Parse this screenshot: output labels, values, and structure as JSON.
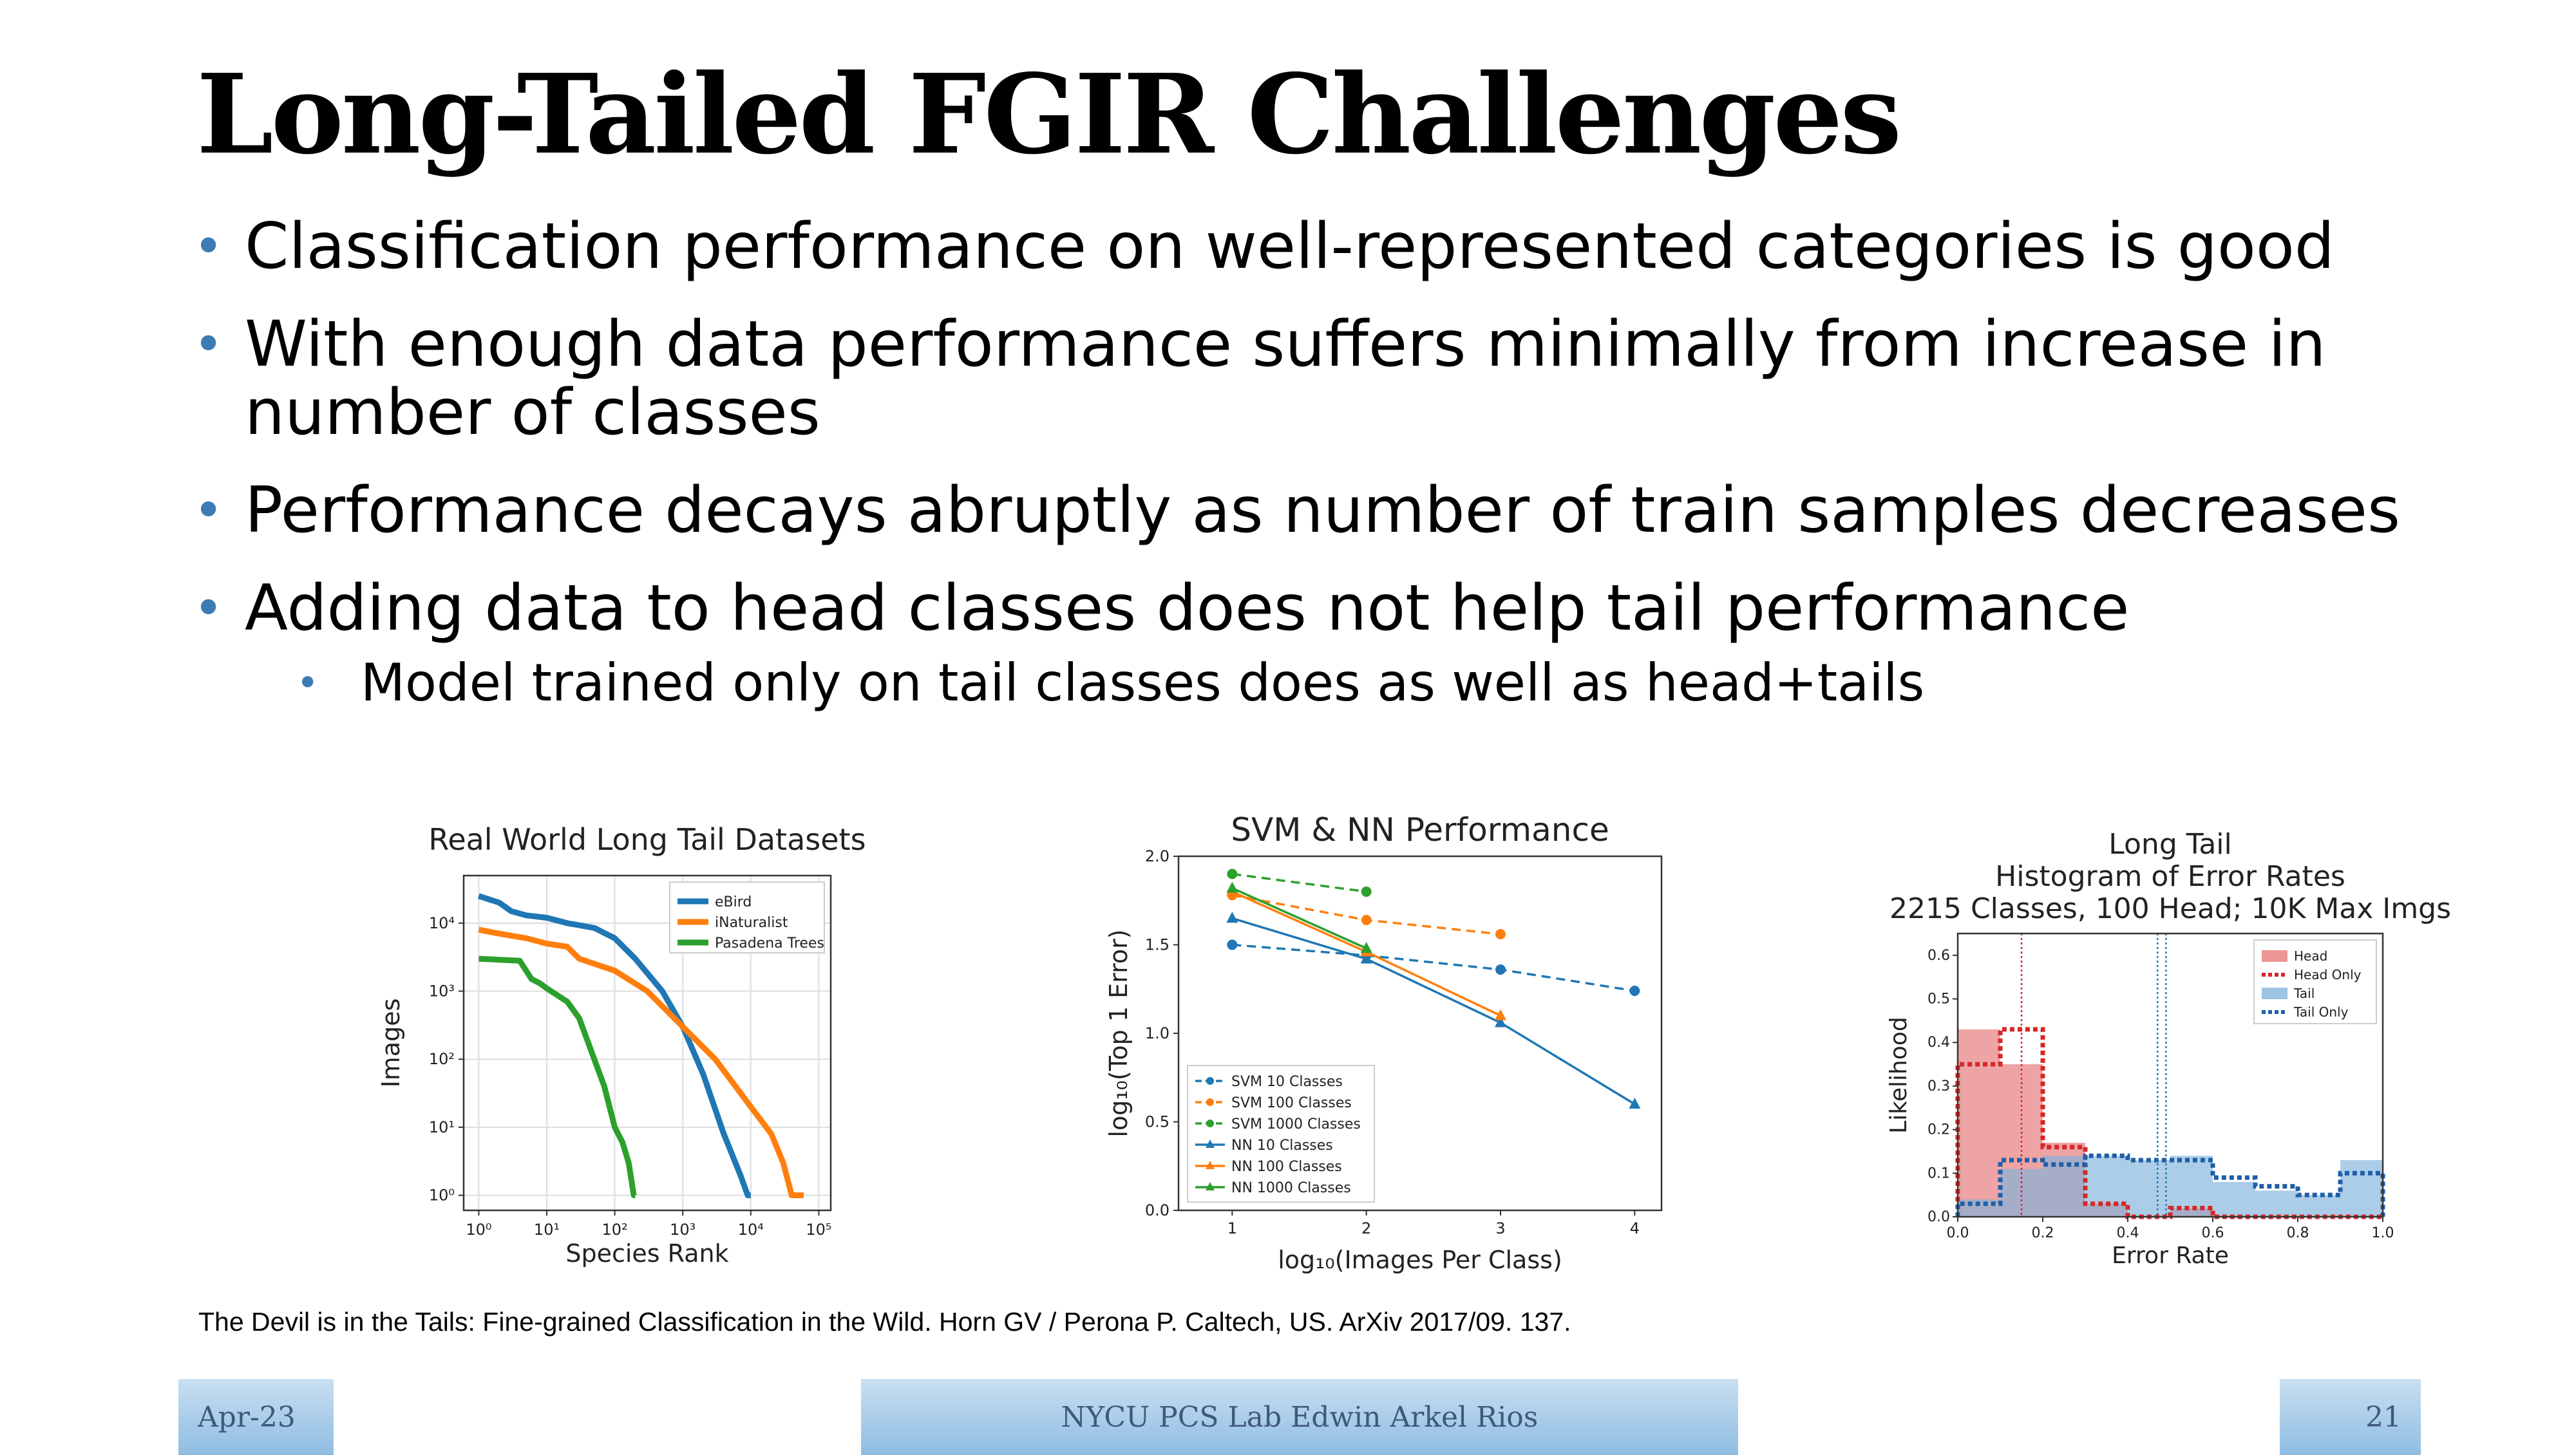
{
  "slide": {
    "title": "Long-Tailed FGIR Challenges",
    "bullets": [
      "Classification performance on well-represented categories is good",
      "With enough data performance suffers minimally from increase in number of classes",
      "Performance decays abruptly as number of train samples decreases",
      "Adding data to head classes does not help tail performance"
    ],
    "sub_bullets": [
      "Model trained only on tail classes does as well as head+tails"
    ],
    "reference": "The Devil is in the Tails: Fine-grained Classification in the Wild. Horn GV / Perona P. Caltech, US. ArXiv 2017/09. 137.",
    "footer": {
      "date": "Apr-23",
      "center": "NYCU PCS Lab Edwin Arkel Rios",
      "page": "21"
    }
  },
  "chart_data": [
    {
      "type": "line",
      "title": "Real World Long Tail Datasets",
      "xlabel": "Species Rank",
      "ylabel": "Images",
      "x_scale": "log",
      "y_scale": "log",
      "xlim": [
        0.6,
        150000
      ],
      "ylim": [
        0.6,
        50000
      ],
      "x_ticks": [
        "10⁰",
        "10¹",
        "10²",
        "10³",
        "10⁴",
        "10⁵"
      ],
      "y_ticks": [
        "10⁰",
        "10¹",
        "10²",
        "10³",
        "10⁴"
      ],
      "grid": true,
      "legend": "top-right",
      "series": [
        {
          "name": "eBird",
          "color": "#1f77b4",
          "x": [
            1,
            2,
            3,
            5,
            10,
            20,
            50,
            100,
            200,
            500,
            1000,
            2000,
            4000,
            7000,
            9000,
            10000
          ],
          "y": [
            25000,
            20000,
            15000,
            13000,
            12000,
            10000,
            8500,
            6000,
            3000,
            1000,
            300,
            60,
            8,
            2,
            1,
            1
          ]
        },
        {
          "name": "iNaturalist",
          "color": "#ff7f0e",
          "x": [
            1,
            2,
            5,
            10,
            20,
            30,
            100,
            300,
            1000,
            3000,
            10000,
            20000,
            30000,
            40000,
            50000,
            60000
          ],
          "y": [
            8000,
            7000,
            6000,
            5000,
            4500,
            3000,
            2000,
            1000,
            300,
            100,
            20,
            8,
            3,
            1,
            1,
            1
          ]
        },
        {
          "name": "Pasadena Trees",
          "color": "#2ca02c",
          "x": [
            1,
            2,
            4,
            6,
            8,
            10,
            20,
            30,
            50,
            70,
            100,
            130,
            160,
            190,
            200
          ],
          "y": [
            3000,
            2900,
            2800,
            1500,
            1300,
            1100,
            700,
            400,
            100,
            40,
            10,
            6,
            3,
            1,
            1
          ]
        }
      ]
    },
    {
      "type": "line",
      "title": "SVM & NN Performance",
      "xlabel": "log₁₀(Images Per Class)",
      "ylabel": "log₁₀(Top 1 Error)",
      "xlim": [
        0.6,
        4.2
      ],
      "ylim": [
        0.0,
        2.0
      ],
      "x_ticks": [
        "1",
        "2",
        "3",
        "4"
      ],
      "y_ticks": [
        "0.0",
        "0.5",
        "1.0",
        "1.5",
        "2.0"
      ],
      "legend": "bottom-left",
      "series": [
        {
          "name": "SVM 10 Classes",
          "color": "#1f77b4",
          "style": "dashed",
          "marker": "circle",
          "x": [
            1,
            2,
            3,
            4
          ],
          "y": [
            1.5,
            1.44,
            1.36,
            1.24
          ]
        },
        {
          "name": "SVM 100 Classes",
          "color": "#ff7f0e",
          "style": "dashed",
          "marker": "circle",
          "x": [
            1,
            2,
            3
          ],
          "y": [
            1.78,
            1.64,
            1.56
          ]
        },
        {
          "name": "SVM 1000 Classes",
          "color": "#2ca02c",
          "style": "dashed",
          "marker": "circle",
          "x": [
            1,
            2
          ],
          "y": [
            1.9,
            1.8
          ]
        },
        {
          "name": "NN 10 Classes",
          "color": "#1f77b4",
          "style": "solid",
          "marker": "triangle",
          "x": [
            1,
            2,
            3,
            4
          ],
          "y": [
            1.65,
            1.42,
            1.06,
            0.6
          ]
        },
        {
          "name": "NN 100 Classes",
          "color": "#ff7f0e",
          "style": "solid",
          "marker": "triangle",
          "x": [
            1,
            2,
            3
          ],
          "y": [
            1.8,
            1.46,
            1.1
          ]
        },
        {
          "name": "NN 1000 Classes",
          "color": "#2ca02c",
          "style": "solid",
          "marker": "triangle",
          "x": [
            1,
            2
          ],
          "y": [
            1.82,
            1.48
          ]
        }
      ]
    },
    {
      "type": "bar",
      "title": [
        "Long Tail",
        "Histogram of Error Rates",
        "2215 Classes, 100 Head; 10K Max Imgs"
      ],
      "xlabel": "Error Rate",
      "ylabel": "Likelihood",
      "xlim": [
        0.0,
        1.0
      ],
      "ylim": [
        0.0,
        0.65
      ],
      "x_ticks": [
        "0.0",
        "0.2",
        "0.4",
        "0.6",
        "0.8",
        "1.0"
      ],
      "y_ticks": [
        "0.0",
        "0.1",
        "0.2",
        "0.3",
        "0.4",
        "0.5",
        "0.6"
      ],
      "bin_edges": [
        0.0,
        0.1,
        0.2,
        0.3,
        0.4,
        0.5,
        0.6,
        0.7,
        0.8,
        0.9,
        1.0
      ],
      "legend": "top-right",
      "series": [
        {
          "name": "Head",
          "color": "#e57373",
          "kind": "filled",
          "values": [
            0.43,
            0.35,
            0.17,
            0.03,
            0.0,
            0.02,
            0.0,
            0.0,
            0.0,
            0.0
          ]
        },
        {
          "name": "Head Only",
          "color": "#d62728",
          "kind": "step-dotted",
          "values": [
            0.35,
            0.43,
            0.16,
            0.03,
            0.0,
            0.02,
            0.0,
            0.0,
            0.0,
            0.0
          ]
        },
        {
          "name": "Tail",
          "color": "#7fb2dc",
          "kind": "filled",
          "values": [
            0.04,
            0.11,
            0.14,
            0.14,
            0.13,
            0.14,
            0.08,
            0.06,
            0.05,
            0.13
          ]
        },
        {
          "name": "Tail Only",
          "color": "#1f5fa8",
          "kind": "step-dotted",
          "values": [
            0.03,
            0.13,
            0.12,
            0.14,
            0.13,
            0.13,
            0.09,
            0.07,
            0.05,
            0.1
          ]
        }
      ],
      "vlines": [
        {
          "x": 0.15,
          "color": "#d62728"
        },
        {
          "x": 0.47,
          "color": "#1f77b4"
        },
        {
          "x": 0.49,
          "color": "#1f77b4"
        }
      ]
    }
  ]
}
